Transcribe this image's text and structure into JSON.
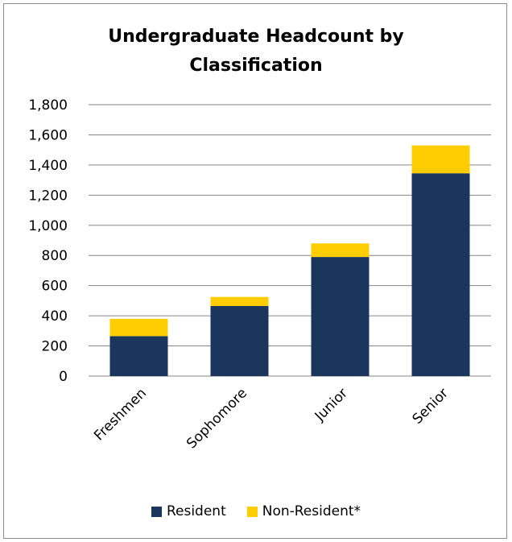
{
  "chart_data": {
    "type": "bar",
    "stacked": true,
    "title": "Undergraduate Headcount by Classification",
    "categories": [
      "Freshmen",
      "Sophomore",
      "Junior",
      "Senior"
    ],
    "series": [
      {
        "name": "Resident",
        "color": "#1b365d",
        "values": [
          265,
          465,
          790,
          1345
        ]
      },
      {
        "name": "Non-Resident*",
        "color": "#ffcd00",
        "values": [
          115,
          60,
          90,
          185
        ]
      }
    ],
    "ylim": [
      0,
      1800
    ],
    "yticks": [
      "0",
      "200",
      "400",
      "600",
      "800",
      "1,000",
      "1,200",
      "1,400",
      "1,600",
      "1,800"
    ],
    "ytick_values": [
      0,
      200,
      400,
      600,
      800,
      1000,
      1200,
      1400,
      1600,
      1800
    ],
    "grid": true,
    "legend_position": "bottom"
  }
}
